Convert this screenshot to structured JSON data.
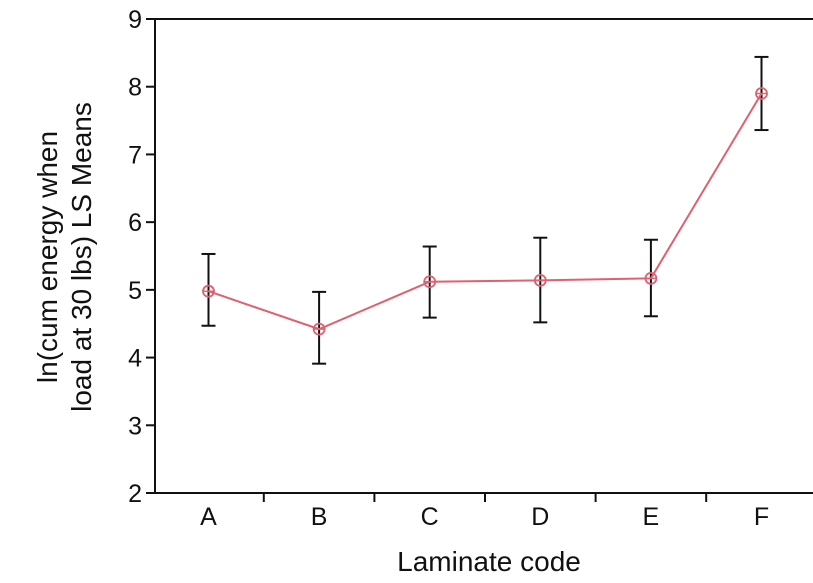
{
  "chart_data": {
    "type": "line",
    "xlabel": "Laminate code",
    "ylabel_lines": [
      "ln(cum energy when",
      "load at 30 lbs) LS Means"
    ],
    "categories": [
      "A",
      "B",
      "C",
      "D",
      "E",
      "F"
    ],
    "series": [
      {
        "values": [
          4.98,
          4.42,
          5.12,
          5.14,
          5.17,
          7.9
        ],
        "error_low": [
          4.47,
          3.91,
          4.59,
          4.52,
          4.61,
          7.36
        ],
        "error_high": [
          5.53,
          4.97,
          5.64,
          5.77,
          5.74,
          8.44
        ]
      }
    ],
    "ylim": [
      2,
      9
    ],
    "yticks": [
      2,
      3,
      4,
      5,
      6,
      7,
      8,
      9
    ],
    "grid": false,
    "line_color": "#e06070",
    "errorbar_color": "#111111",
    "background": "#ffffff"
  }
}
